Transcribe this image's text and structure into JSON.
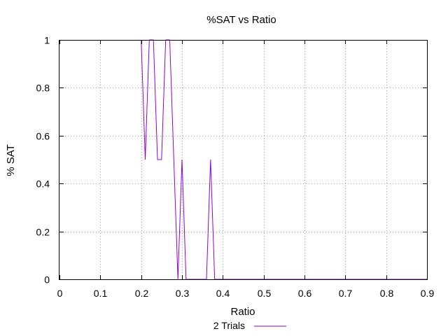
{
  "chart_data": {
    "type": "line",
    "title": "%SAT vs Ratio",
    "xlabel": "Ratio",
    "ylabel": "% SAT",
    "xlim": [
      0,
      0.9
    ],
    "ylim": [
      0,
      1
    ],
    "xticks": [
      "0",
      "0.1",
      "0.2",
      "0.3",
      "0.4",
      "0.5",
      "0.6",
      "0.7",
      "0.8",
      "0.9"
    ],
    "yticks": [
      "0",
      "0.2",
      "0.4",
      "0.6",
      "0.8",
      "1"
    ],
    "grid": true,
    "legend_position": "bottom",
    "series": [
      {
        "name": "2 Trials",
        "color": "#9400d3",
        "x": [
          0.2,
          0.21,
          0.22,
          0.23,
          0.24,
          0.25,
          0.26,
          0.27,
          0.28,
          0.29,
          0.3,
          0.31,
          0.32,
          0.33,
          0.34,
          0.35,
          0.36,
          0.37,
          0.38,
          0.39,
          0.4,
          0.41,
          0.42,
          0.43,
          0.44,
          0.45,
          0.46,
          0.47,
          0.48,
          0.49,
          0.5,
          0.51,
          0.52,
          0.53,
          0.54,
          0.55,
          0.56,
          0.57,
          0.58,
          0.59,
          0.6,
          0.61,
          0.62,
          0.63,
          0.64,
          0.65,
          0.66,
          0.67,
          0.68,
          0.69,
          0.7,
          0.71,
          0.72,
          0.73,
          0.74,
          0.75,
          0.76,
          0.77,
          0.78,
          0.79,
          0.8,
          0.81,
          0.82,
          0.83,
          0.84,
          0.85,
          0.86,
          0.87,
          0.88,
          0.89,
          0.9
        ],
        "y": [
          1,
          0.5,
          1,
          1,
          0.5,
          0.5,
          1,
          1,
          0.5,
          0,
          0.5,
          0,
          0,
          0,
          0,
          0,
          0,
          0.5,
          0,
          0,
          0,
          0,
          0,
          0,
          0,
          0,
          0,
          0,
          0,
          0,
          0,
          0,
          0,
          0,
          0,
          0,
          0,
          0,
          0,
          0,
          0,
          0,
          0,
          0,
          0,
          0,
          0,
          0,
          0,
          0,
          0,
          0,
          0,
          0,
          0,
          0,
          0,
          0,
          0,
          0,
          0,
          0,
          0,
          0,
          0,
          0,
          0,
          0,
          0,
          0,
          0
        ]
      }
    ]
  }
}
